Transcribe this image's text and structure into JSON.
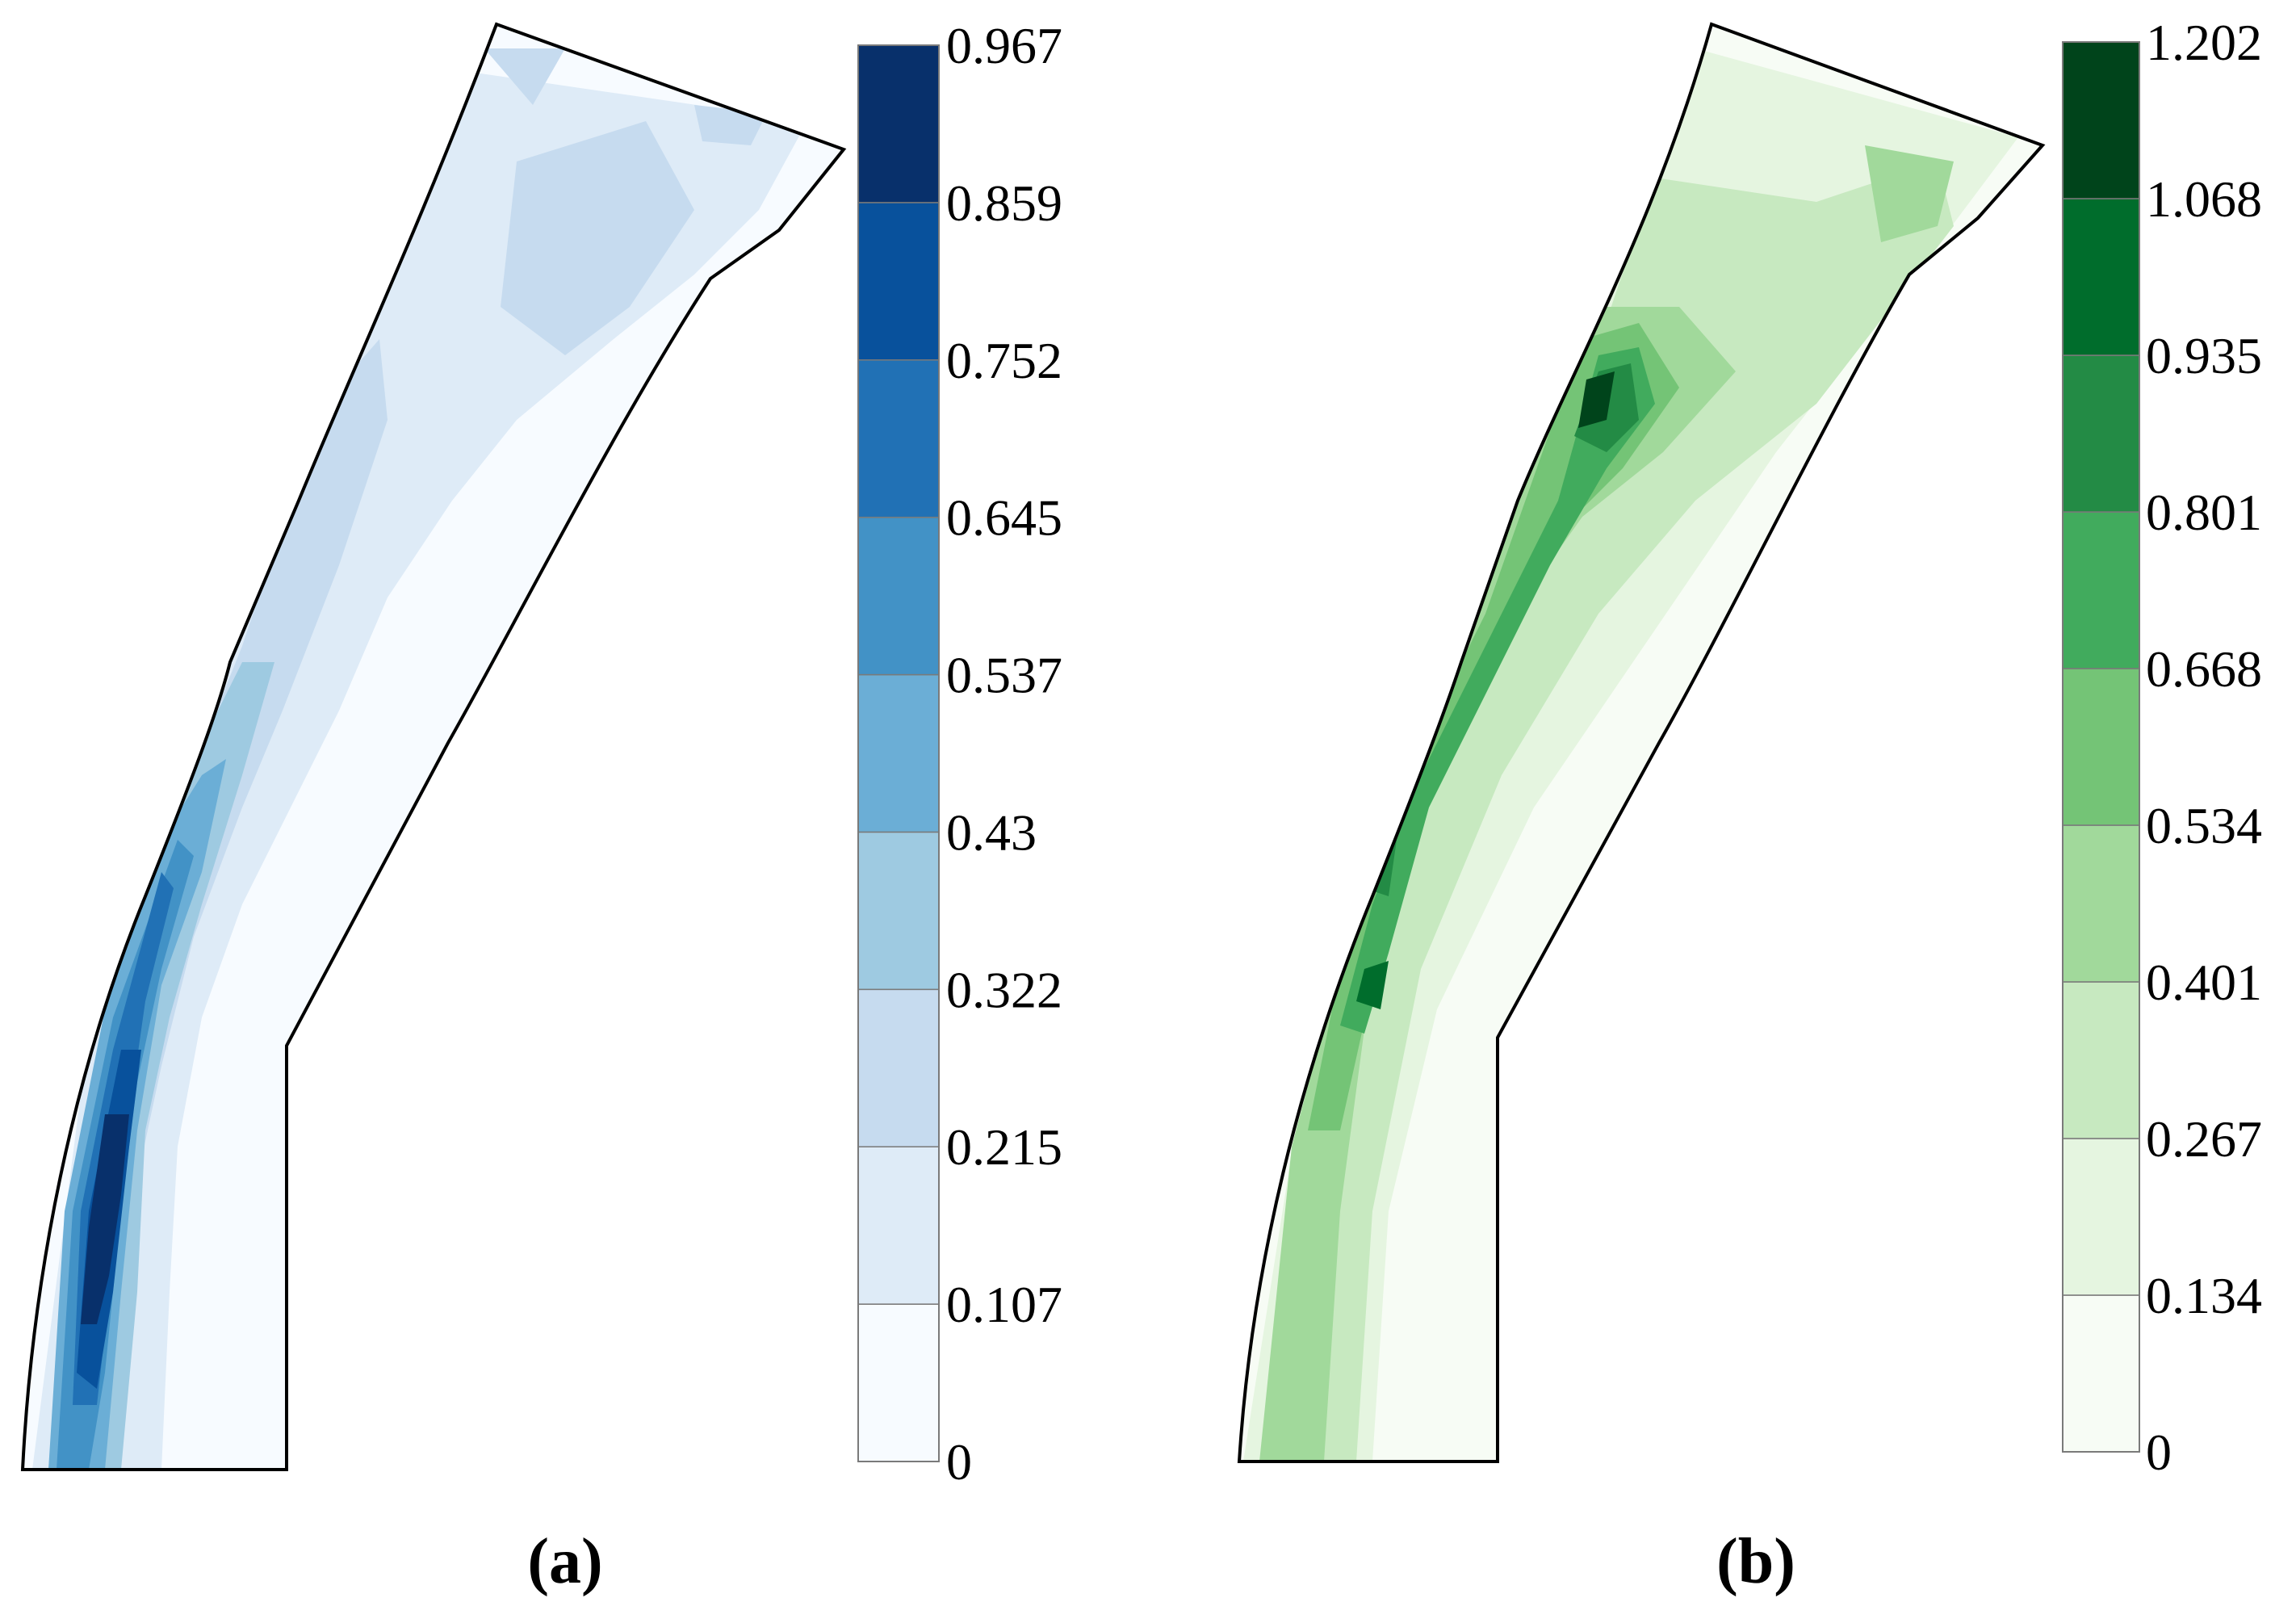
{
  "chart_data": [
    {
      "type": "heatmap",
      "panel_label": "(a)",
      "colorbar": {
        "ticks": [
          "0",
          "0.107",
          "0.215",
          "0.322",
          "0.43",
          "0.537",
          "0.645",
          "0.752",
          "0.859",
          "0.967"
        ],
        "levels": [
          0,
          0.107,
          0.215,
          0.322,
          0.43,
          0.537,
          0.645,
          0.752,
          0.859,
          0.967
        ],
        "colors": [
          "#f7fbff",
          "#deebf7",
          "#c6dbef",
          "#9ecae1",
          "#6baed6",
          "#4292c6",
          "#2171b5",
          "#08519c",
          "#08306b"
        ]
      }
    },
    {
      "type": "heatmap",
      "panel_label": "(b)",
      "colorbar": {
        "ticks": [
          "0",
          "0.134",
          "0.267",
          "0.401",
          "0.534",
          "0.668",
          "0.801",
          "0.935",
          "1.068",
          "1.202"
        ],
        "levels": [
          0,
          0.134,
          0.267,
          0.401,
          0.534,
          0.668,
          0.801,
          0.935,
          1.068,
          1.202
        ],
        "colors": [
          "#f7fcf5",
          "#e5f5e0",
          "#c7e9c0",
          "#a1d99b",
          "#74c476",
          "#41ab5d",
          "#238b45",
          "#006d2c",
          "#00441b"
        ]
      }
    }
  ]
}
